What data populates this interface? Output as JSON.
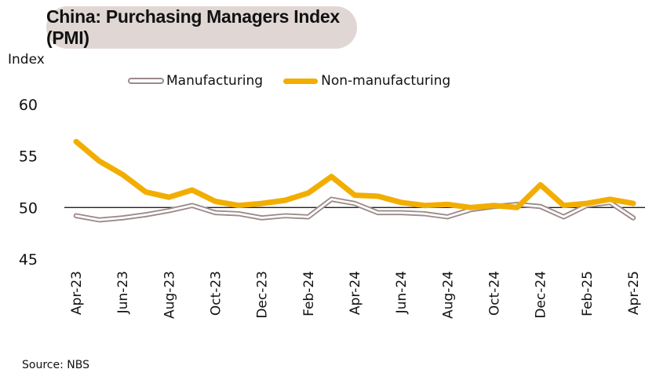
{
  "chart_data": {
    "type": "line",
    "title": "China: Purchasing Managers Index (PMI)",
    "ylabel": "Index",
    "xlabel": "",
    "ylim": [
      45,
      60
    ],
    "yticks": [
      45,
      50,
      55,
      60
    ],
    "reference_line": 50,
    "x": [
      "Apr-23",
      "May-23",
      "Jun-23",
      "Jul-23",
      "Aug-23",
      "Sep-23",
      "Oct-23",
      "Nov-23",
      "Dec-23",
      "Jan-24",
      "Feb-24",
      "Mar-24",
      "Apr-24",
      "May-24",
      "Jun-24",
      "Jul-24",
      "Aug-24",
      "Sep-24",
      "Oct-24",
      "Nov-24",
      "Dec-24",
      "Jan-25",
      "Feb-25",
      "Mar-25",
      "Apr-25"
    ],
    "xtick_labels": [
      "Apr-23",
      "Jun-23",
      "Aug-23",
      "Oct-23",
      "Dec-23",
      "Feb-24",
      "Apr-24",
      "Jun-24",
      "Aug-24",
      "Oct-24",
      "Dec-24",
      "Feb-25",
      "Apr-25"
    ],
    "series": [
      {
        "name": "Manufacturing",
        "color": "#9c8a8a",
        "values": [
          49.2,
          48.8,
          49.0,
          49.3,
          49.7,
          50.2,
          49.5,
          49.4,
          49.0,
          49.2,
          49.1,
          50.8,
          50.4,
          49.5,
          49.5,
          49.4,
          49.1,
          49.8,
          50.1,
          50.3,
          50.1,
          49.1,
          50.2,
          50.5,
          49.0
        ]
      },
      {
        "name": "Non-manufacturing",
        "color": "#f2ae00",
        "values": [
          56.4,
          54.5,
          53.2,
          51.5,
          51.0,
          51.7,
          50.6,
          50.2,
          50.4,
          50.7,
          51.4,
          53.0,
          51.2,
          51.1,
          50.5,
          50.2,
          50.3,
          50.0,
          50.2,
          50.0,
          52.2,
          50.2,
          50.4,
          50.8,
          50.4
        ]
      }
    ],
    "legend": {
      "placement": "top-center",
      "entries": [
        "Manufacturing",
        "Non-manufacturing"
      ]
    },
    "grid": false
  },
  "source": "Source: NBS"
}
